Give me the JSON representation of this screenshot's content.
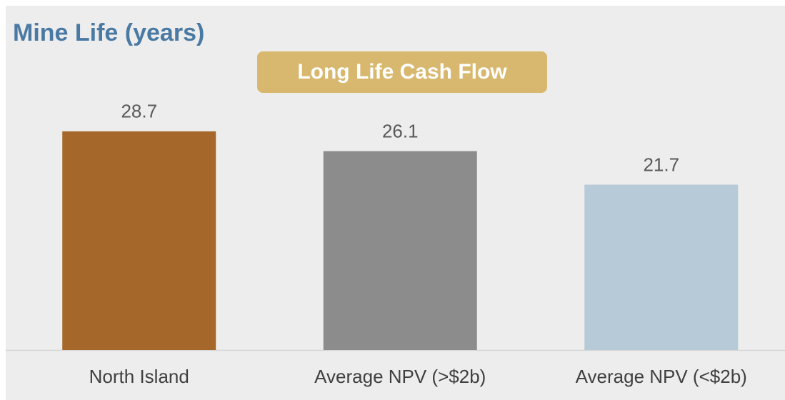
{
  "chart_data": {
    "type": "bar",
    "title": "Mine Life (years)",
    "annotation": "Long Life Cash Flow",
    "categories": [
      "North Island",
      "Average NPV (>$2b)",
      "Average NPV (<$2b)"
    ],
    "values": [
      28.7,
      26.1,
      21.7
    ],
    "colors": [
      "#a5682a",
      "#8c8c8c",
      "#b7cad8"
    ],
    "ylim": [
      0,
      30
    ],
    "grid": false
  }
}
